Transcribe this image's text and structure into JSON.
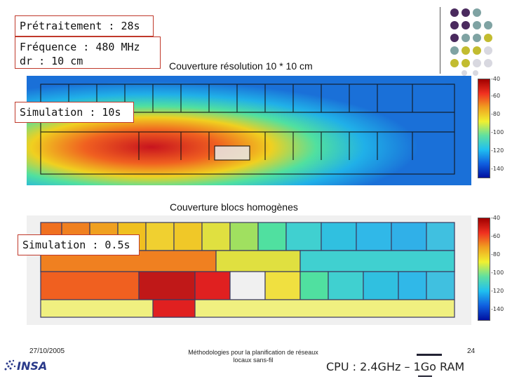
{
  "boxes": {
    "pretraitement": "Prétraitement : 28s",
    "frequence_line1": "Fréquence : 480 MHz",
    "frequence_line2": "dr : 10 cm",
    "simulation_fine": "Simulation : 10s",
    "simulation_blocs": "Simulation : 0.5s"
  },
  "titles": {
    "map1": "Couverture résolution 10 * 10 cm",
    "map2": "Couverture blocs homogènes"
  },
  "scale1_ticks": [
    "-40",
    "-60",
    "-80",
    "-100",
    "-120",
    "-140"
  ],
  "scale2_ticks": [
    "-40",
    "-60",
    "-80",
    "-100",
    "-120",
    "-140"
  ],
  "footer": {
    "date": "27/10/2005",
    "title_line1": "Méthodologies pour la planification de réseaux",
    "title_line2": "locaux sans-fil",
    "page": "24",
    "cpu": "CPU : 2.4GHz – 1Go RAM",
    "logo": "INSA"
  },
  "colors": {
    "purple": "#4a2a5e",
    "teal": "#7fa3a3",
    "olive": "#c2bc30",
    "light": "#d8d8e0",
    "box_border": "#c0392b"
  }
}
